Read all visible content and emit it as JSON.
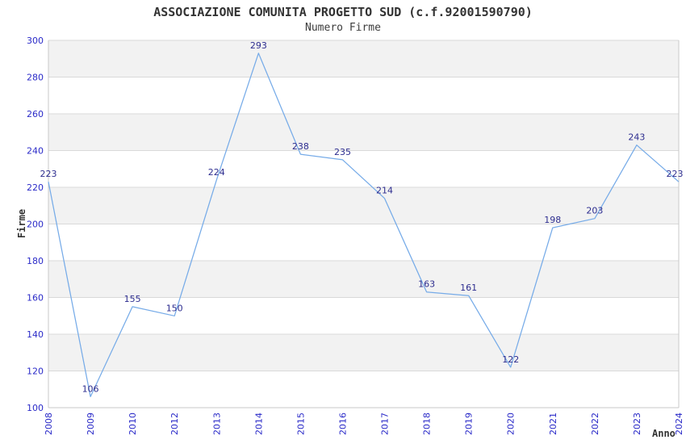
{
  "page": {
    "title": "ASSOCIAZIONE COMUNITA PROGETTO SUD (c.f.92001590790)",
    "subtitle": "Numero Firme"
  },
  "chart_data": {
    "type": "line",
    "title": "ASSOCIAZIONE COMUNITA PROGETTO SUD (c.f.92001590790)",
    "subtitle": "Numero Firme",
    "xlabel": "Anno",
    "ylabel": "Firme",
    "categories": [
      "2008",
      "2009",
      "2010",
      "2012",
      "2013",
      "2014",
      "2015",
      "2016",
      "2017",
      "2018",
      "2019",
      "2020",
      "2021",
      "2022",
      "2023",
      "2024"
    ],
    "values": [
      223,
      106,
      155,
      150,
      224,
      293,
      238,
      235,
      214,
      163,
      161,
      122,
      198,
      203,
      243,
      223
    ],
    "ylim": [
      100,
      300
    ],
    "ytick_step": 20,
    "grid": true,
    "legend_position": "none",
    "band_pattern": "alternating-horizontal",
    "data_labels_visible": true,
    "colors": {
      "line": "#76abe8",
      "axis_tick_label": "#2a2ac8",
      "data_label": "#2d2d8f",
      "band": "#f2f2f2",
      "gridline": "#d9d9d9",
      "border": "#c9c9c9",
      "title": "#333333"
    }
  }
}
